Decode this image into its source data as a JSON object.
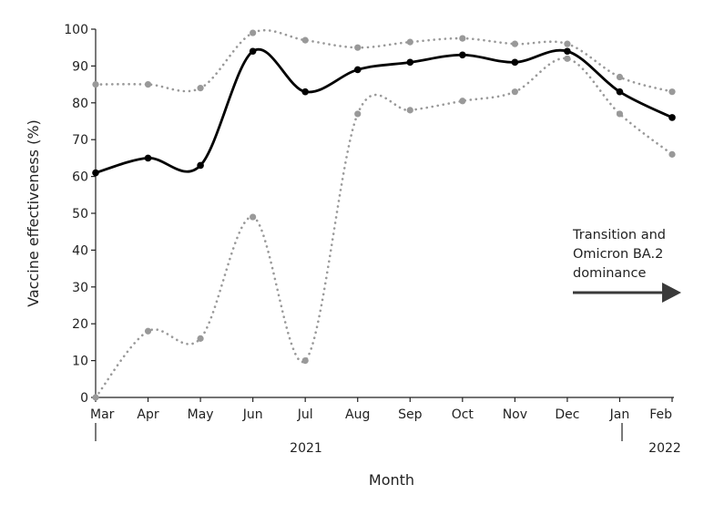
{
  "chart_data": {
    "type": "line",
    "title": "",
    "xlabel": "Month",
    "ylabel": "Vaccine effectiveness (%)",
    "categories": [
      "Mar",
      "Apr",
      "May",
      "Jun",
      "Jul",
      "Aug",
      "Sep",
      "Oct",
      "Nov",
      "Dec",
      "Jan",
      "Feb"
    ],
    "year_labels": [
      "2021",
      "2022"
    ],
    "ylim": [
      0,
      100
    ],
    "yticks": [
      0,
      10,
      20,
      30,
      40,
      50,
      60,
      70,
      80,
      90,
      100
    ],
    "grid": false,
    "series": [
      {
        "role": "estimate",
        "values": [
          61,
          65,
          63,
          94,
          83,
          89,
          91,
          93,
          91,
          94,
          83,
          76
        ],
        "color": "#000000",
        "style": "solid"
      },
      {
        "role": "upper-bound",
        "values": [
          85,
          85,
          84,
          99,
          97,
          95,
          96.5,
          97.5,
          96,
          96,
          87,
          83
        ],
        "color": "#999999",
        "style": "dotted"
      },
      {
        "role": "lower-bound",
        "values": [
          0,
          18,
          16,
          49,
          10,
          77,
          78,
          80.5,
          83,
          92,
          77,
          66
        ],
        "color": "#999999",
        "style": "dotted"
      }
    ],
    "annotation": {
      "lines": [
        "Transition and",
        "Omicron BA.2",
        "dominance"
      ],
      "arrow_color": "#3a3a3a"
    }
  }
}
